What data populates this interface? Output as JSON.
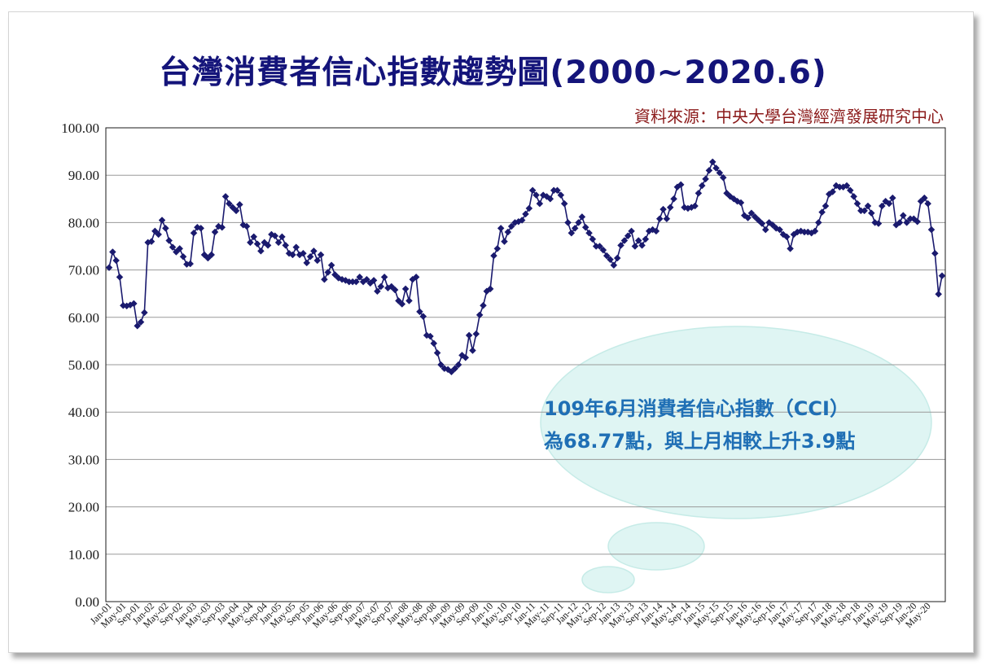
{
  "title": "台灣消費者信心指數趨勢圖(2000~2020.6)",
  "source": "資料來源：中央大學台灣經濟發展研究中心",
  "callout": {
    "line1": "109年6月消費者信心指數（CCI）",
    "line2": "為68.77點，與上月相較上升3.9點"
  },
  "colors": {
    "title": "#14147a",
    "source": "#8b1a1a",
    "series": "#1a1a6e",
    "callout_text": "#1f6fb5",
    "callout_fill": "#dff5f3"
  },
  "chart_data": {
    "type": "line",
    "y_ticks": [
      "0.00",
      "10.00",
      "20.00",
      "30.00",
      "40.00",
      "50.00",
      "60.00",
      "70.00",
      "80.00",
      "90.00",
      "100.00"
    ],
    "ylim": [
      0,
      100
    ],
    "grid": true,
    "marker": "diamond",
    "x_tick_labels": [
      "Jan-01",
      "May-01",
      "Sep-01",
      "Jan-02",
      "May-02",
      "Sep-02",
      "Jan-03",
      "May-03",
      "Sep-03",
      "Jan-04",
      "May-04",
      "Sep-04",
      "Jan-05",
      "May-05",
      "Sep-05",
      "Jan-06",
      "May-06",
      "Sep-06",
      "Jan-07",
      "May-07",
      "Sep-07",
      "Jan-08",
      "May-08",
      "Sep-08",
      "Jan-09",
      "May-09",
      "Sep-09",
      "Jan-10",
      "May-10",
      "Sep-10",
      "Jan-11",
      "May-11",
      "Sep-11",
      "Jan-12",
      "May-12",
      "Sep-12",
      "Jan-13",
      "May-13",
      "Sep-13",
      "Jan-14",
      "May-14",
      "Sep-14",
      "Jan-15",
      "May-15",
      "Sep-15",
      "Jan-16",
      "May-16",
      "Sep-16",
      "Jan-17",
      "May-17",
      "Sep-17",
      "Jan-18",
      "May-18",
      "Sep-18",
      "Jan-19",
      "May-19",
      "Sep-19",
      "Jan-20",
      "May-20"
    ],
    "series": [
      {
        "values": [
          70.5,
          73.8,
          72.0,
          68.5,
          62.5,
          62.4,
          62.6,
          62.9,
          58.2,
          59.0,
          61.0,
          75.8,
          76.0,
          78.2,
          77.5,
          80.5,
          78.8,
          76.2,
          74.8,
          73.8,
          74.5,
          72.8,
          71.2,
          71.3,
          77.8,
          79.0,
          78.8,
          73.2,
          72.5,
          73.2,
          78.0,
          79.2,
          79.0,
          85.5,
          84.0,
          83.2,
          82.5,
          83.8,
          79.5,
          79.2,
          75.8,
          77.0,
          75.5,
          74.0,
          75.8,
          75.2,
          77.5,
          77.2,
          75.8,
          77.0,
          75.2,
          73.5,
          73.2,
          74.8,
          73.2,
          73.5,
          71.5,
          72.8,
          74.0,
          72.0,
          73.2,
          68.0,
          69.5,
          71.0,
          69.0,
          68.3,
          68.0,
          67.8,
          67.5,
          67.5,
          67.5,
          68.5,
          67.5,
          68.0,
          67.2,
          67.8,
          65.5,
          66.5,
          68.5,
          66.2,
          66.5,
          65.8,
          63.5,
          62.8,
          66.0,
          63.5,
          68.0,
          68.5,
          61.2,
          60.2,
          56.2,
          56.0,
          54.5,
          52.5,
          50.0,
          49.2,
          49.0,
          48.5,
          49.2,
          50.0,
          52.0,
          51.5,
          56.2,
          53.0,
          56.5,
          60.5,
          62.5,
          65.5,
          66.0,
          73.0,
          74.5,
          78.8,
          76.0,
          78.0,
          79.2,
          80.0,
          80.2,
          80.5,
          81.8,
          83.0,
          86.8,
          85.8,
          84.0,
          85.8,
          85.5,
          85.0,
          86.8,
          86.8,
          85.8,
          84.0,
          80.0,
          77.8,
          78.8,
          80.0,
          81.2,
          79.0,
          77.8,
          76.5,
          75.0,
          75.0,
          74.2,
          73.0,
          72.2,
          71.0,
          72.5,
          75.2,
          76.2,
          77.2,
          78.2,
          75.0,
          76.2,
          75.2,
          76.5,
          78.2,
          78.5,
          78.2,
          80.8,
          82.8,
          80.8,
          83.2,
          85.0,
          87.5,
          88.0,
          83.2,
          83.0,
          83.2,
          83.5,
          86.2,
          87.8,
          89.2,
          91.0,
          92.8,
          91.5,
          90.5,
          89.5,
          86.2,
          85.5,
          85.0,
          84.5,
          84.2,
          81.5,
          81.0,
          82.0,
          81.2,
          80.5,
          79.8,
          78.5,
          80.0,
          79.5,
          78.8,
          78.5,
          77.5,
          77.0,
          74.5,
          77.5,
          78.0,
          78.2,
          78.0,
          78.0,
          77.8,
          78.2,
          80.0,
          82.2,
          83.5,
          86.0,
          86.5,
          87.8,
          87.5,
          87.5,
          87.8,
          86.8,
          85.5,
          84.0,
          82.5,
          82.5,
          83.5,
          82.0,
          80.0,
          79.8,
          83.5,
          84.5,
          84.0,
          85.2,
          79.5,
          80.0,
          81.5,
          80.0,
          80.8,
          80.8,
          80.2,
          84.5,
          85.2,
          84.0,
          78.5,
          73.5,
          64.9,
          68.77
        ]
      }
    ]
  }
}
